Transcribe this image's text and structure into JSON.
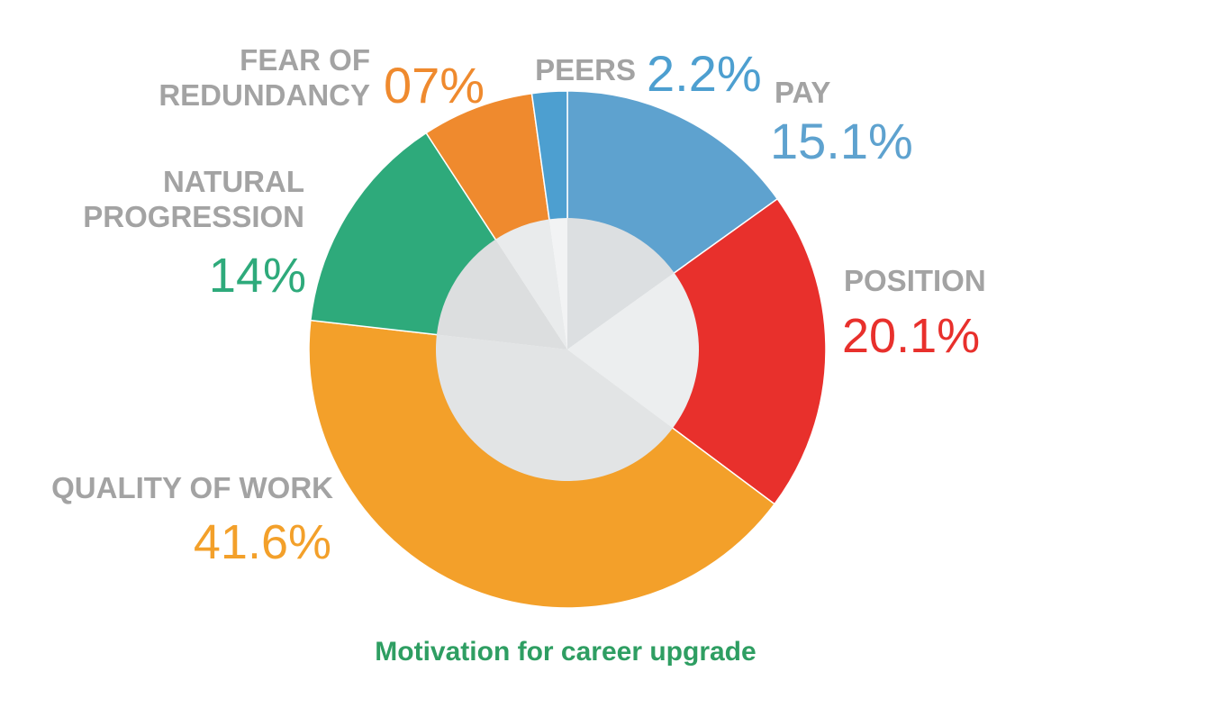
{
  "chart_data": {
    "type": "pie",
    "title": "Motivation for career upgrade",
    "slices": [
      {
        "label": "PAY",
        "label_lines": [
          "PAY"
        ],
        "value": 15.1,
        "value_label": "15.1%",
        "color": "#5ea2cf"
      },
      {
        "label": "POSITION",
        "label_lines": [
          "POSITION"
        ],
        "value": 20.1,
        "value_label": "20.1%",
        "color": "#e8302c"
      },
      {
        "label": "QUALITY OF WORK",
        "label_lines": [
          "QUALITY OF WORK"
        ],
        "value": 41.6,
        "value_label": "41.6%",
        "color": "#f3a02a"
      },
      {
        "label": "NATURAL PROGRESSION",
        "label_lines": [
          "NATURAL",
          "PROGRESSION"
        ],
        "value": 14,
        "value_label": "14%",
        "color": "#2eaa7b"
      },
      {
        "label": "FEAR OF REDUNDANCY",
        "label_lines": [
          "FEAR OF",
          "REDUNDANCY"
        ],
        "value": 7,
        "value_label": "07%",
        "color": "#ef8a2e"
      },
      {
        "label": "PEERS",
        "label_lines": [
          "PEERS"
        ],
        "value": 2.2,
        "value_label": "2.2%",
        "color": "#4d9fd0"
      }
    ],
    "label_color": "#a3a3a3",
    "title_color": "#2e9e62",
    "inner_color": "#e2e3e4",
    "start_angle_deg": 0,
    "direction": "clockwise"
  }
}
